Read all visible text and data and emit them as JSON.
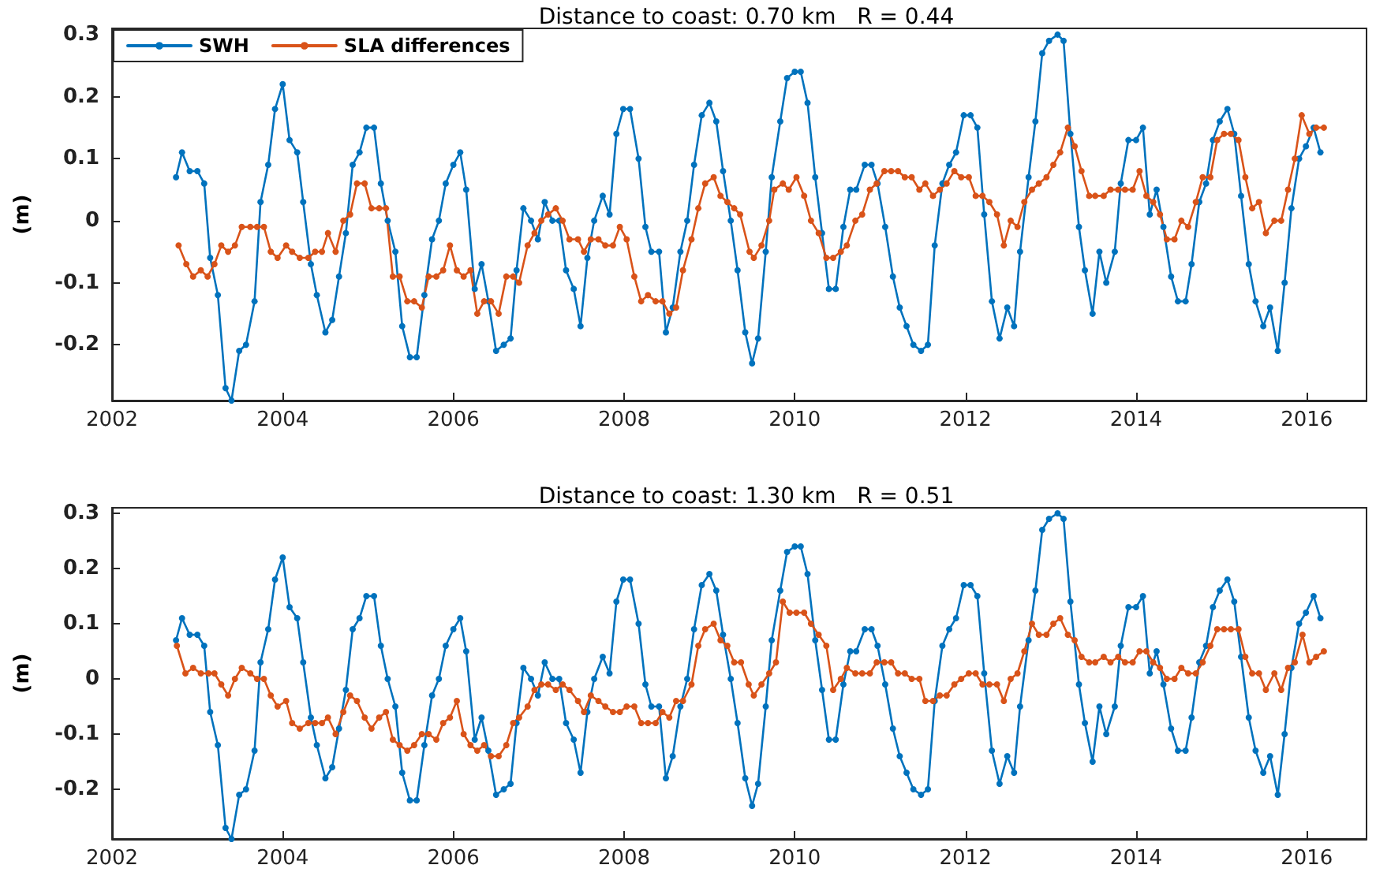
{
  "chart_data": [
    {
      "type": "line",
      "title": "Distance to coast: 0.70 km   R = 0.44",
      "ylabel": "(m)",
      "xlim": [
        2002,
        2016.7
      ],
      "ylim": [
        -0.29,
        0.31
      ],
      "xticks": [
        2002,
        2004,
        2006,
        2008,
        2010,
        2012,
        2014,
        2016
      ],
      "yticks": [
        -0.2,
        -0.1,
        0,
        0.1,
        0.2,
        0.3
      ],
      "grid": false,
      "legend": "top left",
      "marker": "circle",
      "line_style": "solid",
      "series": [
        {
          "name": "SWH",
          "color": "#0072bd",
          "x": [
            2002.75,
            2002.82,
            2002.91,
            2003.0,
            2003.08,
            2003.15,
            2003.24,
            2003.33,
            2003.4,
            2003.49,
            2003.57,
            2003.67,
            2003.74,
            2003.83,
            2003.91,
            2004.0,
            2004.08,
            2004.17,
            2004.24,
            2004.33,
            2004.4,
            2004.5,
            2004.58,
            2004.66,
            2004.74,
            2004.82,
            2004.9,
            2004.98,
            2005.07,
            2005.15,
            2005.23,
            2005.32,
            2005.4,
            2005.49,
            2005.57,
            2005.66,
            2005.75,
            2005.83,
            2005.91,
            2006.0,
            2006.08,
            2006.15,
            2006.25,
            2006.33,
            2006.41,
            2006.5,
            2006.59,
            2006.67,
            2006.74,
            2006.82,
            2006.91,
            2006.99,
            2007.07,
            2007.16,
            2007.24,
            2007.32,
            2007.41,
            2007.49,
            2007.57,
            2007.65,
            2007.75,
            2007.83,
            2007.91,
            2007.99,
            2008.07,
            2008.17,
            2008.25,
            2008.32,
            2008.41,
            2008.49,
            2008.57,
            2008.66,
            2008.74,
            2008.82,
            2008.91,
            2009.0,
            2009.08,
            2009.16,
            2009.25,
            2009.33,
            2009.42,
            2009.5,
            2009.57,
            2009.66,
            2009.73,
            2009.83,
            2009.91,
            2010.0,
            2010.07,
            2010.15,
            2010.24,
            2010.32,
            2010.4,
            2010.48,
            2010.57,
            2010.65,
            2010.72,
            2010.82,
            2010.9,
            2010.97,
            2011.06,
            2011.15,
            2011.23,
            2011.31,
            2011.39,
            2011.48,
            2011.56,
            2011.64,
            2011.73,
            2011.81,
            2011.89,
            2011.98,
            2012.06,
            2012.14,
            2012.22,
            2012.31,
            2012.4,
            2012.49,
            2012.57,
            2012.64,
            2012.74,
            2012.82,
            2012.9,
            2012.98,
            2013.08,
            2013.15,
            2013.23,
            2013.33,
            2013.4,
            2013.49,
            2013.57,
            2013.65,
            2013.75,
            2013.82,
            2013.91,
            2014.0,
            2014.08,
            2014.16,
            2014.24,
            2014.32,
            2014.41,
            2014.49,
            2014.58,
            2014.65,
            2014.74,
            2014.82,
            2014.9,
            2014.98,
            2015.07,
            2015.15,
            2015.23,
            2015.32,
            2015.4,
            2015.49,
            2015.57,
            2015.66,
            2015.74,
            2015.82,
            2015.91,
            2015.99,
            2016.08,
            2016.16
          ],
          "values": [
            0.07,
            0.11,
            0.08,
            0.08,
            0.06,
            -0.06,
            -0.12,
            -0.27,
            -0.29,
            -0.21,
            -0.2,
            -0.13,
            0.03,
            0.09,
            0.18,
            0.22,
            0.13,
            0.11,
            0.03,
            -0.07,
            -0.12,
            -0.18,
            -0.16,
            -0.09,
            -0.02,
            0.09,
            0.11,
            0.15,
            0.15,
            0.06,
            0,
            -0.05,
            -0.17,
            -0.22,
            -0.22,
            -0.12,
            -0.03,
            0,
            0.06,
            0.09,
            0.11,
            0.05,
            -0.11,
            -0.07,
            -0.13,
            -0.21,
            -0.2,
            -0.19,
            -0.08,
            0.02,
            0,
            -0.03,
            0.03,
            0,
            0,
            -0.08,
            -0.11,
            -0.17,
            -0.06,
            0,
            0.04,
            0.01,
            0.14,
            0.18,
            0.18,
            0.1,
            -0.01,
            -0.05,
            -0.05,
            -0.18,
            -0.14,
            -0.05,
            0,
            0.09,
            0.17,
            0.19,
            0.16,
            0.08,
            0,
            -0.08,
            -0.18,
            -0.23,
            -0.19,
            -0.05,
            0.07,
            0.16,
            0.23,
            0.24,
            0.24,
            0.19,
            0.07,
            -0.02,
            -0.11,
            -0.11,
            -0.01,
            0.05,
            0.05,
            0.09,
            0.09,
            0.06,
            -0.01,
            -0.09,
            -0.14,
            -0.17,
            -0.2,
            -0.21,
            -0.2,
            -0.04,
            0.06,
            0.09,
            0.11,
            0.17,
            0.17,
            0.15,
            0.01,
            -0.13,
            -0.19,
            -0.14,
            -0.17,
            -0.05,
            0.07,
            0.16,
            0.27,
            0.29,
            0.3,
            0.29,
            0.14,
            -0.01,
            -0.08,
            -0.15,
            -0.05,
            -0.1,
            -0.05,
            0.06,
            0.13,
            0.13,
            0.15,
            0.01,
            0.05,
            -0.01,
            -0.09,
            -0.13,
            -0.13,
            -0.07,
            0.03,
            0.06,
            0.13,
            0.16,
            0.18,
            0.14,
            0.04,
            -0.07,
            -0.13,
            -0.17,
            -0.14,
            -0.21,
            -0.1,
            0.02,
            0.1,
            0.12,
            0.15,
            0.11
          ]
        },
        {
          "name": "SLA differences",
          "color": "#d95319",
          "x": [
            2002.78,
            2002.87,
            2002.95,
            2003.04,
            2003.12,
            2003.2,
            2003.28,
            2003.36,
            2003.44,
            2003.52,
            2003.62,
            2003.7,
            2003.78,
            2003.86,
            2003.94,
            2004.04,
            2004.11,
            2004.2,
            2004.3,
            2004.38,
            2004.46,
            2004.53,
            2004.62,
            2004.71,
            2004.79,
            2004.87,
            2004.96,
            2005.04,
            2005.13,
            2005.21,
            2005.29,
            2005.37,
            2005.46,
            2005.54,
            2005.63,
            2005.71,
            2005.8,
            2005.88,
            2005.96,
            2006.04,
            2006.12,
            2006.2,
            2006.28,
            2006.36,
            2006.44,
            2006.53,
            2006.62,
            2006.7,
            2006.77,
            2006.87,
            2006.95,
            2007.03,
            2007.11,
            2007.2,
            2007.28,
            2007.36,
            2007.46,
            2007.53,
            2007.61,
            2007.7,
            2007.78,
            2007.87,
            2007.95,
            2008.03,
            2008.12,
            2008.2,
            2008.28,
            2008.37,
            2008.45,
            2008.53,
            2008.61,
            2008.69,
            2008.79,
            2008.87,
            2008.95,
            2009.05,
            2009.13,
            2009.21,
            2009.29,
            2009.36,
            2009.47,
            2009.52,
            2009.61,
            2009.7,
            2009.76,
            2009.86,
            2009.93,
            2010.02,
            2010.11,
            2010.19,
            2010.28,
            2010.37,
            2010.45,
            2010.54,
            2010.61,
            2010.71,
            2010.79,
            2010.88,
            2010.96,
            2011.05,
            2011.13,
            2011.21,
            2011.29,
            2011.37,
            2011.46,
            2011.53,
            2011.62,
            2011.7,
            2011.78,
            2011.87,
            2011.95,
            2012.04,
            2012.12,
            2012.2,
            2012.28,
            2012.37,
            2012.45,
            2012.53,
            2012.61,
            2012.69,
            2012.78,
            2012.86,
            2012.95,
            2013.03,
            2013.11,
            2013.2,
            2013.28,
            2013.36,
            2013.45,
            2013.52,
            2013.62,
            2013.7,
            2013.79,
            2013.87,
            2013.96,
            2014.04,
            2014.12,
            2014.2,
            2014.28,
            2014.36,
            2014.45,
            2014.53,
            2014.61,
            2014.7,
            2014.78,
            2014.87,
            2014.95,
            2015.03,
            2015.11,
            2015.2,
            2015.28,
            2015.36,
            2015.44,
            2015.52,
            2015.62,
            2015.7,
            2015.78,
            2015.86,
            2015.94,
            2016.03,
            2016.11,
            2016.2
          ],
          "values": [
            -0.04,
            -0.07,
            -0.09,
            -0.08,
            -0.09,
            -0.07,
            -0.04,
            -0.05,
            -0.04,
            -0.01,
            -0.01,
            -0.01,
            -0.01,
            -0.05,
            -0.06,
            -0.04,
            -0.05,
            -0.06,
            -0.06,
            -0.05,
            -0.05,
            -0.02,
            -0.05,
            0,
            0.01,
            0.06,
            0.06,
            0.02,
            0.02,
            0.02,
            -0.09,
            -0.09,
            -0.13,
            -0.13,
            -0.14,
            -0.09,
            -0.09,
            -0.08,
            -0.04,
            -0.08,
            -0.09,
            -0.08,
            -0.15,
            -0.13,
            -0.13,
            -0.15,
            -0.09,
            -0.09,
            -0.1,
            -0.04,
            -0.02,
            0,
            0.01,
            0.02,
            0,
            -0.03,
            -0.03,
            -0.05,
            -0.03,
            -0.03,
            -0.04,
            -0.04,
            -0.01,
            -0.03,
            -0.09,
            -0.13,
            -0.12,
            -0.13,
            -0.13,
            -0.15,
            -0.14,
            -0.08,
            -0.03,
            0.02,
            0.06,
            0.07,
            0.04,
            0.03,
            0.02,
            0.01,
            -0.05,
            -0.06,
            -0.04,
            0,
            0.05,
            0.06,
            0.05,
            0.07,
            0.04,
            0,
            -0.02,
            -0.06,
            -0.06,
            -0.05,
            -0.04,
            0,
            0.01,
            0.05,
            0.06,
            0.08,
            0.08,
            0.08,
            0.07,
            0.07,
            0.05,
            0.06,
            0.04,
            0.05,
            0.06,
            0.08,
            0.07,
            0.07,
            0.04,
            0.04,
            0.03,
            0.01,
            -0.04,
            0,
            -0.01,
            0.03,
            0.05,
            0.06,
            0.07,
            0.09,
            0.11,
            0.15,
            0.12,
            0.08,
            0.04,
            0.04,
            0.04,
            0.05,
            0.05,
            0.05,
            0.05,
            0.08,
            0.04,
            0.03,
            0.01,
            -0.03,
            -0.03,
            0,
            -0.01,
            0.03,
            0.07,
            0.07,
            0.13,
            0.14,
            0.14,
            0.13,
            0.07,
            0.02,
            0.03,
            -0.02,
            0,
            0,
            0.05,
            0.1,
            0.17,
            0.14,
            0.15,
            0.15
          ]
        }
      ]
    },
    {
      "type": "line",
      "title": "Distance to coast: 1.30 km   R = 0.51",
      "ylabel": "(m)",
      "xlim": [
        2002,
        2016.7
      ],
      "ylim": [
        -0.29,
        0.31
      ],
      "xticks": [
        2002,
        2004,
        2006,
        2008,
        2010,
        2012,
        2014,
        2016
      ],
      "yticks": [
        -0.2,
        -0.1,
        0,
        0.1,
        0.2,
        0.3
      ],
      "grid": false,
      "legend": false,
      "marker": "circle",
      "line_style": "solid",
      "series": [
        {
          "color": "#0072bd",
          "x": [
            2002.75,
            2002.82,
            2002.91,
            2003.0,
            2003.08,
            2003.15,
            2003.24,
            2003.33,
            2003.4,
            2003.49,
            2003.57,
            2003.67,
            2003.74,
            2003.83,
            2003.91,
            2004.0,
            2004.08,
            2004.17,
            2004.24,
            2004.33,
            2004.4,
            2004.5,
            2004.58,
            2004.66,
            2004.74,
            2004.82,
            2004.9,
            2004.98,
            2005.07,
            2005.15,
            2005.23,
            2005.32,
            2005.4,
            2005.49,
            2005.57,
            2005.66,
            2005.75,
            2005.83,
            2005.91,
            2006.0,
            2006.08,
            2006.15,
            2006.25,
            2006.33,
            2006.41,
            2006.5,
            2006.59,
            2006.67,
            2006.74,
            2006.82,
            2006.91,
            2006.99,
            2007.07,
            2007.16,
            2007.24,
            2007.32,
            2007.41,
            2007.49,
            2007.57,
            2007.65,
            2007.75,
            2007.83,
            2007.91,
            2007.99,
            2008.07,
            2008.17,
            2008.25,
            2008.32,
            2008.41,
            2008.49,
            2008.57,
            2008.66,
            2008.74,
            2008.82,
            2008.91,
            2009.0,
            2009.08,
            2009.16,
            2009.25,
            2009.33,
            2009.42,
            2009.5,
            2009.57,
            2009.66,
            2009.73,
            2009.83,
            2009.91,
            2010.0,
            2010.07,
            2010.15,
            2010.24,
            2010.32,
            2010.4,
            2010.48,
            2010.57,
            2010.65,
            2010.72,
            2010.82,
            2010.9,
            2010.97,
            2011.06,
            2011.15,
            2011.23,
            2011.31,
            2011.39,
            2011.48,
            2011.56,
            2011.64,
            2011.73,
            2011.81,
            2011.89,
            2011.98,
            2012.06,
            2012.14,
            2012.22,
            2012.31,
            2012.4,
            2012.49,
            2012.57,
            2012.64,
            2012.74,
            2012.82,
            2012.9,
            2012.98,
            2013.08,
            2013.15,
            2013.23,
            2013.33,
            2013.4,
            2013.49,
            2013.57,
            2013.65,
            2013.75,
            2013.82,
            2013.91,
            2014.0,
            2014.08,
            2014.16,
            2014.24,
            2014.32,
            2014.41,
            2014.49,
            2014.58,
            2014.65,
            2014.74,
            2014.82,
            2014.9,
            2014.98,
            2015.07,
            2015.15,
            2015.23,
            2015.32,
            2015.4,
            2015.49,
            2015.57,
            2015.66,
            2015.74,
            2015.82,
            2015.91,
            2015.99,
            2016.08,
            2016.16
          ],
          "values": [
            0.07,
            0.11,
            0.08,
            0.08,
            0.06,
            -0.06,
            -0.12,
            -0.27,
            -0.29,
            -0.21,
            -0.2,
            -0.13,
            0.03,
            0.09,
            0.18,
            0.22,
            0.13,
            0.11,
            0.03,
            -0.07,
            -0.12,
            -0.18,
            -0.16,
            -0.09,
            -0.02,
            0.09,
            0.11,
            0.15,
            0.15,
            0.06,
            0,
            -0.05,
            -0.17,
            -0.22,
            -0.22,
            -0.12,
            -0.03,
            0,
            0.06,
            0.09,
            0.11,
            0.05,
            -0.11,
            -0.07,
            -0.13,
            -0.21,
            -0.2,
            -0.19,
            -0.08,
            0.02,
            0,
            -0.03,
            0.03,
            0,
            0,
            -0.08,
            -0.11,
            -0.17,
            -0.06,
            0,
            0.04,
            0.01,
            0.14,
            0.18,
            0.18,
            0.1,
            -0.01,
            -0.05,
            -0.05,
            -0.18,
            -0.14,
            -0.05,
            0,
            0.09,
            0.17,
            0.19,
            0.16,
            0.08,
            0,
            -0.08,
            -0.18,
            -0.23,
            -0.19,
            -0.05,
            0.07,
            0.16,
            0.23,
            0.24,
            0.24,
            0.19,
            0.07,
            -0.02,
            -0.11,
            -0.11,
            -0.01,
            0.05,
            0.05,
            0.09,
            0.09,
            0.06,
            -0.01,
            -0.09,
            -0.14,
            -0.17,
            -0.2,
            -0.21,
            -0.2,
            -0.04,
            0.06,
            0.09,
            0.11,
            0.17,
            0.17,
            0.15,
            0.01,
            -0.13,
            -0.19,
            -0.14,
            -0.17,
            -0.05,
            0.07,
            0.16,
            0.27,
            0.29,
            0.3,
            0.29,
            0.14,
            -0.01,
            -0.08,
            -0.15,
            -0.05,
            -0.1,
            -0.05,
            0.06,
            0.13,
            0.13,
            0.15,
            0.01,
            0.05,
            -0.01,
            -0.09,
            -0.13,
            -0.13,
            -0.07,
            0.03,
            0.06,
            0.13,
            0.16,
            0.18,
            0.14,
            0.04,
            -0.07,
            -0.13,
            -0.17,
            -0.14,
            -0.21,
            -0.1,
            0.02,
            0.1,
            0.12,
            0.15,
            0.11
          ]
        },
        {
          "color": "#d95319",
          "x": [
            2002.76,
            2002.86,
            2002.95,
            2003.04,
            2003.13,
            2003.2,
            2003.28,
            2003.36,
            2003.44,
            2003.52,
            2003.62,
            2003.7,
            2003.78,
            2003.86,
            2003.94,
            2004.04,
            2004.11,
            2004.2,
            2004.3,
            2004.38,
            2004.46,
            2004.53,
            2004.62,
            2004.71,
            2004.79,
            2004.87,
            2004.96,
            2005.04,
            2005.13,
            2005.21,
            2005.29,
            2005.37,
            2005.46,
            2005.54,
            2005.63,
            2005.71,
            2005.8,
            2005.88,
            2005.96,
            2006.04,
            2006.12,
            2006.2,
            2006.28,
            2006.36,
            2006.44,
            2006.53,
            2006.62,
            2006.7,
            2006.77,
            2006.87,
            2006.95,
            2007.03,
            2007.11,
            2007.2,
            2007.28,
            2007.36,
            2007.46,
            2007.53,
            2007.61,
            2007.7,
            2007.78,
            2007.87,
            2007.95,
            2008.03,
            2008.12,
            2008.2,
            2008.28,
            2008.37,
            2008.45,
            2008.53,
            2008.61,
            2008.69,
            2008.79,
            2008.87,
            2008.95,
            2009.05,
            2009.13,
            2009.21,
            2009.29,
            2009.37,
            2009.46,
            2009.52,
            2009.61,
            2009.7,
            2009.78,
            2009.86,
            2009.94,
            2010.02,
            2010.11,
            2010.19,
            2010.28,
            2010.37,
            2010.45,
            2010.54,
            2010.61,
            2010.71,
            2010.79,
            2010.88,
            2010.96,
            2011.05,
            2011.13,
            2011.21,
            2011.29,
            2011.37,
            2011.46,
            2011.53,
            2011.62,
            2011.7,
            2011.78,
            2011.87,
            2011.95,
            2012.04,
            2012.12,
            2012.2,
            2012.28,
            2012.37,
            2012.45,
            2012.53,
            2012.61,
            2012.69,
            2012.78,
            2012.86,
            2012.95,
            2013.03,
            2013.11,
            2013.2,
            2013.28,
            2013.36,
            2013.45,
            2013.52,
            2013.62,
            2013.7,
            2013.79,
            2013.87,
            2013.96,
            2014.04,
            2014.12,
            2014.2,
            2014.28,
            2014.36,
            2014.45,
            2014.53,
            2014.61,
            2014.7,
            2014.78,
            2014.87,
            2014.95,
            2015.03,
            2015.11,
            2015.2,
            2015.28,
            2015.36,
            2015.44,
            2015.52,
            2015.62,
            2015.7,
            2015.78,
            2015.86,
            2015.95,
            2016.03,
            2016.11,
            2016.2
          ],
          "values": [
            0.06,
            0.01,
            0.02,
            0.01,
            0.01,
            0.01,
            -0.01,
            -0.03,
            0,
            0.02,
            0.01,
            0,
            0,
            -0.03,
            -0.05,
            -0.04,
            -0.08,
            -0.09,
            -0.08,
            -0.08,
            -0.08,
            -0.07,
            -0.1,
            -0.06,
            -0.03,
            -0.04,
            -0.07,
            -0.09,
            -0.07,
            -0.06,
            -0.11,
            -0.12,
            -0.13,
            -0.12,
            -0.1,
            -0.1,
            -0.11,
            -0.08,
            -0.07,
            -0.04,
            -0.1,
            -0.12,
            -0.13,
            -0.12,
            -0.14,
            -0.14,
            -0.12,
            -0.08,
            -0.07,
            -0.05,
            -0.02,
            -0.01,
            -0.01,
            -0.02,
            -0.01,
            -0.02,
            -0.04,
            -0.06,
            -0.03,
            -0.04,
            -0.05,
            -0.06,
            -0.06,
            -0.05,
            -0.05,
            -0.08,
            -0.08,
            -0.08,
            -0.06,
            -0.07,
            -0.04,
            -0.04,
            -0.01,
            0.06,
            0.09,
            0.1,
            0.07,
            0.06,
            0.03,
            0.03,
            -0.01,
            -0.03,
            -0.01,
            0.01,
            0.03,
            0.14,
            0.12,
            0.12,
            0.12,
            0.1,
            0.08,
            0.06,
            -0.02,
            0,
            0.02,
            0.01,
            0.01,
            0.01,
            0.03,
            0.03,
            0.03,
            0.01,
            0.01,
            0,
            0,
            -0.04,
            -0.04,
            -0.03,
            -0.03,
            -0.01,
            0,
            0.01,
            0.01,
            -0.01,
            -0.01,
            -0.01,
            -0.04,
            0,
            0.01,
            0.05,
            0.1,
            0.08,
            0.08,
            0.1,
            0.11,
            0.08,
            0.07,
            0.04,
            0.03,
            0.03,
            0.04,
            0.03,
            0.04,
            0.03,
            0.03,
            0.05,
            0.05,
            0.03,
            0.02,
            0,
            0,
            0.02,
            0.01,
            0.01,
            0.03,
            0.06,
            0.09,
            0.09,
            0.09,
            0.09,
            0.04,
            0.01,
            0.01,
            -0.02,
            0.01,
            -0.02,
            0.02,
            0.03,
            0.08,
            0.03,
            0.04,
            0.05
          ]
        }
      ]
    }
  ]
}
